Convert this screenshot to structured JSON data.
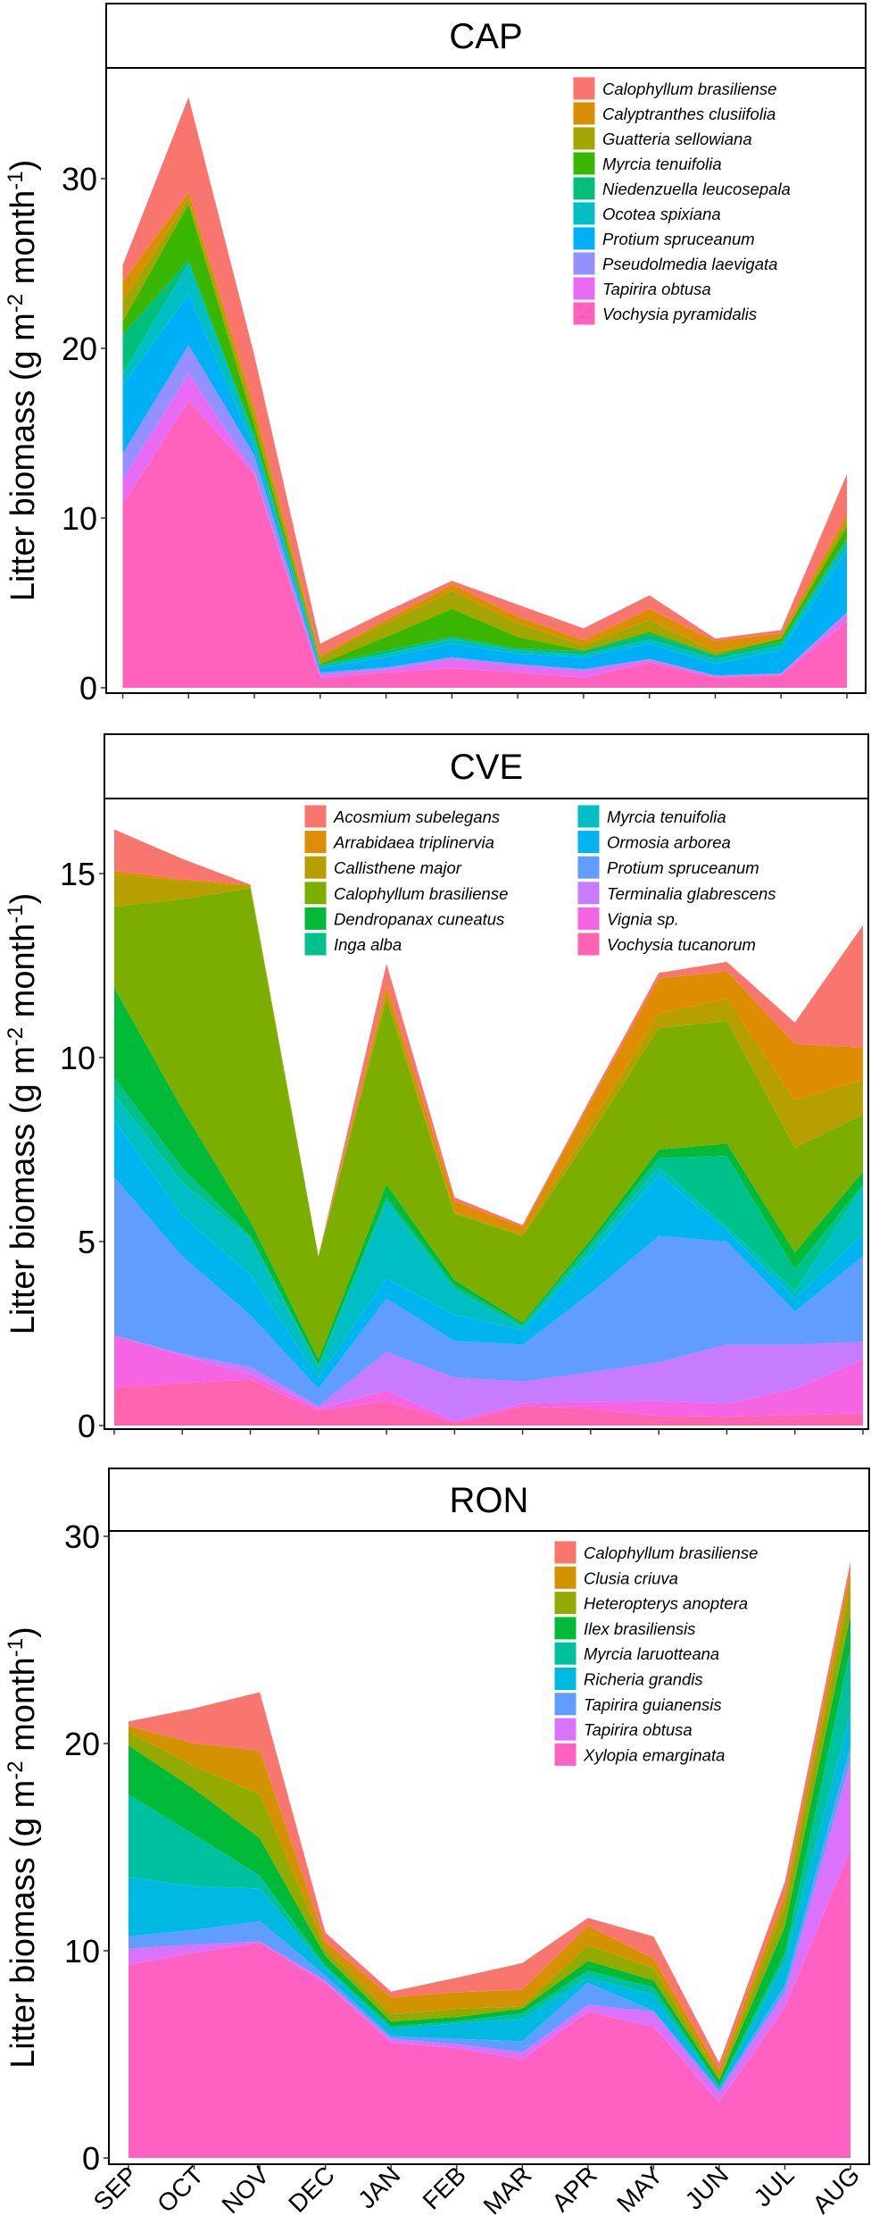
{
  "chart_data": {
    "type": "area",
    "stacked": true,
    "x": [
      "SEP",
      "OCT",
      "NOV",
      "DEC",
      "JAN",
      "FEB",
      "MAR",
      "APR",
      "MAY",
      "JUN",
      "JUL",
      "AUG"
    ],
    "ylabel_parts": [
      "Litter biomass (g m",
      "-2",
      " month",
      "-1",
      ")"
    ],
    "legend_placement": "top-right",
    "grid": false,
    "panels": [
      {
        "title": "CAP",
        "ylim": [
          0,
          36
        ],
        "yticks": [
          0,
          10,
          20,
          30
        ],
        "series": [
          {
            "name": "Calophyllum brasiliense",
            "color": "#F8766D",
            "values": [
              1.0,
              5.6,
              3.1,
              0.7,
              0.5,
              0.2,
              0.7,
              0.7,
              0.8,
              0.15,
              0.2,
              2.4
            ]
          },
          {
            "name": "Calyptranthes clusiifolia",
            "color": "#D89000",
            "values": [
              1.1,
              0.4,
              0.4,
              0.1,
              0.2,
              0.4,
              0.4,
              0.3,
              0.65,
              0.65,
              0.25,
              0.3
            ]
          },
          {
            "name": "Guatteria sellowiana",
            "color": "#A3A500",
            "values": [
              1.2,
              0.3,
              0.6,
              0.4,
              0.8,
              1.05,
              0.8,
              0.3,
              0.7,
              0.15,
              0.05,
              0.4
            ]
          },
          {
            "name": "Myrcia tenuifolia",
            "color": "#39B600",
            "values": [
              0.8,
              3.3,
              0.6,
              0.05,
              0.8,
              1.65,
              0.7,
              0.05,
              0.1,
              0.05,
              0.2,
              0.7
            ]
          },
          {
            "name": "Niedenzuella leucosepala",
            "color": "#00BF7D",
            "values": [
              2.3,
              0.2,
              0.2,
              0.05,
              0.2,
              0.1,
              0.1,
              0.2,
              0.35,
              0.2,
              0.2,
              0.1
            ]
          },
          {
            "name": "Ocotea spixiana",
            "color": "#00BFC4",
            "values": [
              0.7,
              1.8,
              0.6,
              0.15,
              0.2,
              0.3,
              0.2,
              0.15,
              0.25,
              0.3,
              0.3,
              0.6
            ]
          },
          {
            "name": "Protium spruceanum",
            "color": "#00B0F6",
            "values": [
              4.0,
              3.0,
              0.4,
              0.25,
              0.6,
              0.8,
              0.6,
              0.7,
              0.9,
              0.68,
              1.35,
              3.65
            ]
          },
          {
            "name": "Pseudolmedia laevigata",
            "color": "#9590FF",
            "values": [
              1.5,
              1.7,
              1.0,
              0.15,
              0.1,
              0.1,
              0.1,
              0.1,
              0.05,
              0.02,
              0.05,
              0.05
            ]
          },
          {
            "name": "Tapirira obtusa",
            "color": "#E76BF3",
            "values": [
              1.5,
              1.6,
              0.1,
              0.15,
              0.2,
              0.55,
              0.4,
              0.4,
              0.15,
              0.1,
              0.05,
              0.5
            ]
          },
          {
            "name": "Vochysia pyramidalis",
            "color": "#FF62BC",
            "values": [
              10.8,
              16.9,
              12.6,
              0.6,
              0.9,
              1.15,
              0.9,
              0.6,
              1.5,
              0.6,
              0.75,
              3.9
            ]
          }
        ]
      },
      {
        "title": "CVE",
        "ylim": [
          0,
          17
        ],
        "yticks": [
          0,
          5,
          10,
          15
        ],
        "series": [
          {
            "name": "Acosmium subelegans",
            "color": "#F8766D",
            "values": [
              1.13,
              0.55,
              0.0,
              0.0,
              0.6,
              0.1,
              0.05,
              0.1,
              0.15,
              0.25,
              0.58,
              3.33
            ]
          },
          {
            "name": "Arrabidaea triplinervia",
            "color": "#DE8C00",
            "values": [
              0.07,
              0.05,
              0.03,
              0.0,
              0.15,
              0.3,
              0.2,
              0.6,
              0.95,
              0.75,
              1.52,
              0.87
            ]
          },
          {
            "name": "Callisthene major",
            "color": "#B79F00",
            "values": [
              0.9,
              0.5,
              0.07,
              0.0,
              0.2,
              0.05,
              0.05,
              0.3,
              0.4,
              0.6,
              1.3,
              0.95
            ]
          },
          {
            "name": "Calophyllum brasiliense",
            "color": "#7CAE00",
            "values": [
              2.2,
              5.7,
              9.05,
              2.8,
              5.05,
              1.8,
              2.35,
              2.85,
              3.3,
              3.34,
              2.85,
              1.55
            ]
          },
          {
            "name": "Dendropanax cuneatus",
            "color": "#00BA38",
            "values": [
              2.45,
              1.6,
              0.4,
              0.15,
              0.35,
              0.15,
              0.05,
              0.1,
              0.23,
              0.33,
              0.45,
              0.35
            ]
          },
          {
            "name": "Inga alba",
            "color": "#00C08B",
            "values": [
              0.45,
              0.4,
              0.05,
              0.05,
              0.1,
              0.1,
              0.08,
              0.15,
              0.24,
              1.93,
              0.6,
              0.05
            ]
          },
          {
            "name": "Myrcia tenuifolia",
            "color": "#00BFC4",
            "values": [
              0.7,
              0.9,
              1.0,
              0.3,
              2.1,
              0.7,
              0.07,
              0.2,
              0.23,
              0.1,
              0.2,
              1.3
            ]
          },
          {
            "name": "Ormosia arborea",
            "color": "#00B4F0",
            "values": [
              1.55,
              1.1,
              1.1,
              0.3,
              0.55,
              0.7,
              0.4,
              1.0,
              1.65,
              0.3,
              0.35,
              0.6
            ]
          },
          {
            "name": "Protium spruceanum",
            "color": "#619CFF",
            "values": [
              4.3,
              2.65,
              1.4,
              0.47,
              1.45,
              1.0,
              1.0,
              2.15,
              3.43,
              2.8,
              0.9,
              2.32
            ]
          },
          {
            "name": "Terminalia glabrescens",
            "color": "#C77CFF",
            "values": [
              0.0,
              0.05,
              0.2,
              0.07,
              1.05,
              1.17,
              0.6,
              0.8,
              1.06,
              1.6,
              1.2,
              0.48
            ]
          },
          {
            "name": "Vignia sp.",
            "color": "#F564E3",
            "values": [
              1.42,
              0.75,
              0.15,
              0.06,
              0.29,
              0.06,
              0.07,
              0.2,
              0.4,
              0.36,
              0.71,
              1.47
            ]
          },
          {
            "name": "Vochysia tucanorum",
            "color": "#FF64B0",
            "values": [
              1.03,
              1.15,
              1.25,
              0.4,
              0.66,
              0.07,
              0.53,
              0.45,
              0.26,
              0.24,
              0.29,
              0.33
            ]
          }
        ]
      },
      {
        "title": "RON",
        "ylim": [
          0,
          30
        ],
        "yticks": [
          0,
          10,
          20,
          30
        ],
        "series": [
          {
            "name": "Calophyllum brasiliense",
            "color": "#F8766D",
            "values": [
              0.22,
              1.7,
              2.82,
              0.43,
              0.28,
              0.7,
              1.3,
              0.38,
              1.06,
              0.35,
              0.64,
              0.43
            ]
          },
          {
            "name": "Clusia criuva",
            "color": "#D39200",
            "values": [
              0.3,
              1.1,
              2.11,
              0.35,
              0.82,
              0.8,
              0.8,
              0.93,
              0.47,
              0.35,
              0.48,
              0.75
            ]
          },
          {
            "name": "Heteropterys anoptera",
            "color": "#93AA00",
            "values": [
              0.65,
              1.1,
              2.12,
              0.35,
              0.35,
              0.4,
              0.1,
              0.76,
              0.59,
              0.12,
              1.04,
              1.4
            ]
          },
          {
            "name": "Ilex brasiliensis",
            "color": "#00BA38",
            "values": [
              2.35,
              2.2,
              1.81,
              0.47,
              0.24,
              0.2,
              0.23,
              0.47,
              0.35,
              0.26,
              1.29,
              1.65
            ]
          },
          {
            "name": "Myrcia laruotteana",
            "color": "#00C19F",
            "values": [
              4.0,
              2.5,
              0.62,
              0.12,
              0.12,
              0.1,
              0.28,
              0.34,
              0.35,
              0.1,
              0.37,
              3.05
            ]
          },
          {
            "name": "Richeria grandis",
            "color": "#00B9E3",
            "values": [
              2.85,
              2.1,
              1.56,
              0.36,
              0.35,
              0.75,
              1.06,
              0.24,
              0.77,
              0.1,
              1.16,
              1.65
            ]
          },
          {
            "name": "Tapirira guianensis",
            "color": "#619CFF",
            "values": [
              0.6,
              0.7,
              0.99,
              0.25,
              0.11,
              0.25,
              0.54,
              1.06,
              0.05,
              0.13,
              0.35,
              0.7
            ]
          },
          {
            "name": "Tapirira obtusa",
            "color": "#DB72FB",
            "values": [
              0.77,
              0.4,
              0.05,
              0.1,
              0.19,
              0.2,
              0.33,
              0.35,
              0.71,
              0.47,
              0.71,
              4.23
            ]
          },
          {
            "name": "Xylopia emarginata",
            "color": "#FF61C3",
            "values": [
              9.33,
              9.9,
              10.4,
              8.45,
              5.57,
              5.3,
              4.77,
              7.05,
              6.34,
              2.7,
              7.28,
              14.92
            ]
          }
        ]
      }
    ]
  }
}
